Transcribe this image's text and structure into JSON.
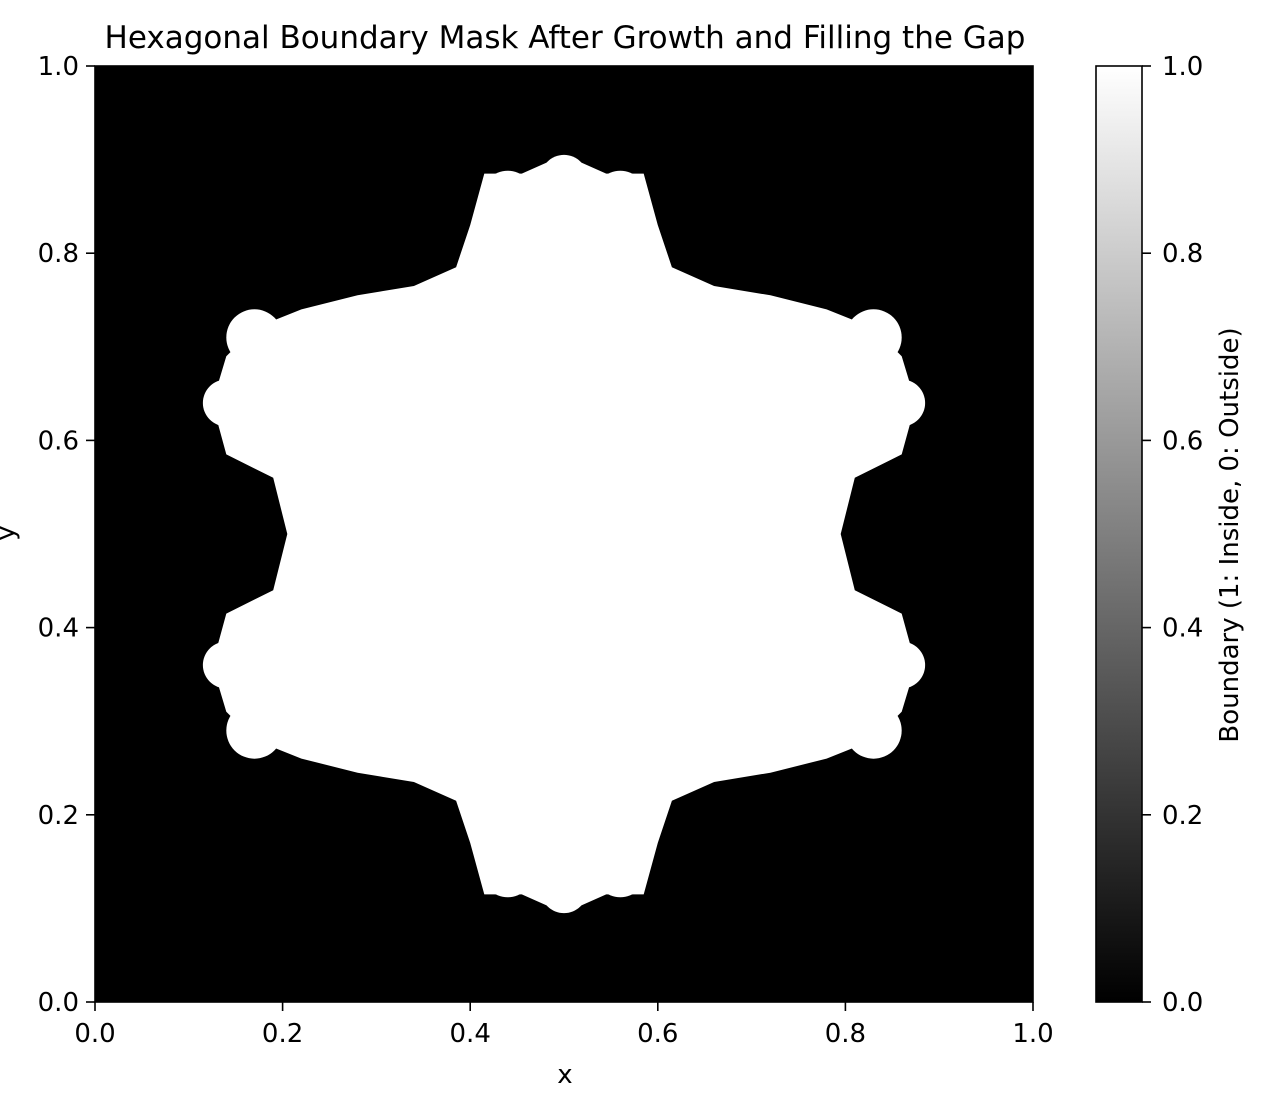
{
  "chart_data": {
    "type": "heatmap",
    "title": "Hexagonal Boundary Mask After Growth and Filling the Gap",
    "xlabel": "x",
    "ylabel": "y",
    "xlim": [
      0.0,
      1.0
    ],
    "ylim": [
      0.0,
      1.0
    ],
    "xticks": [
      "0.0",
      "0.2",
      "0.4",
      "0.6",
      "0.8",
      "1.0"
    ],
    "yticks": [
      "0.0",
      "0.2",
      "0.4",
      "0.6",
      "0.8",
      "1.0"
    ],
    "colormap": "gray",
    "value_range": [
      0.0,
      1.0
    ],
    "colorbar": {
      "label": "Boundary (1: Inside, 0: Outside)",
      "ticks": [
        "0.0",
        "0.2",
        "0.4",
        "0.6",
        "0.8",
        "1.0"
      ],
      "low_color": "#000000",
      "high_color": "#ffffff"
    },
    "outside_value": 0,
    "inside_value": 1,
    "mask_center": [
      0.5,
      0.5
    ],
    "mask_shape": "snowflake-like hexagonal region, x from about 0.12 to 0.88, y from about 0.075 to 0.915",
    "mask_lobes": [
      {
        "x": 0.5,
        "y": 0.88,
        "r": 0.025
      },
      {
        "x": 0.44,
        "y": 0.86,
        "r": 0.028
      },
      {
        "x": 0.56,
        "y": 0.86,
        "r": 0.028
      },
      {
        "x": 0.5,
        "y": 0.12,
        "r": 0.025
      },
      {
        "x": 0.44,
        "y": 0.14,
        "r": 0.028
      },
      {
        "x": 0.56,
        "y": 0.14,
        "r": 0.028
      },
      {
        "x": 0.17,
        "y": 0.71,
        "r": 0.03
      },
      {
        "x": 0.83,
        "y": 0.71,
        "r": 0.03
      },
      {
        "x": 0.17,
        "y": 0.29,
        "r": 0.03
      },
      {
        "x": 0.83,
        "y": 0.29,
        "r": 0.03
      },
      {
        "x": 0.14,
        "y": 0.64,
        "r": 0.025
      },
      {
        "x": 0.86,
        "y": 0.64,
        "r": 0.025
      },
      {
        "x": 0.14,
        "y": 0.36,
        "r": 0.025
      },
      {
        "x": 0.86,
        "y": 0.36,
        "r": 0.025
      }
    ]
  }
}
